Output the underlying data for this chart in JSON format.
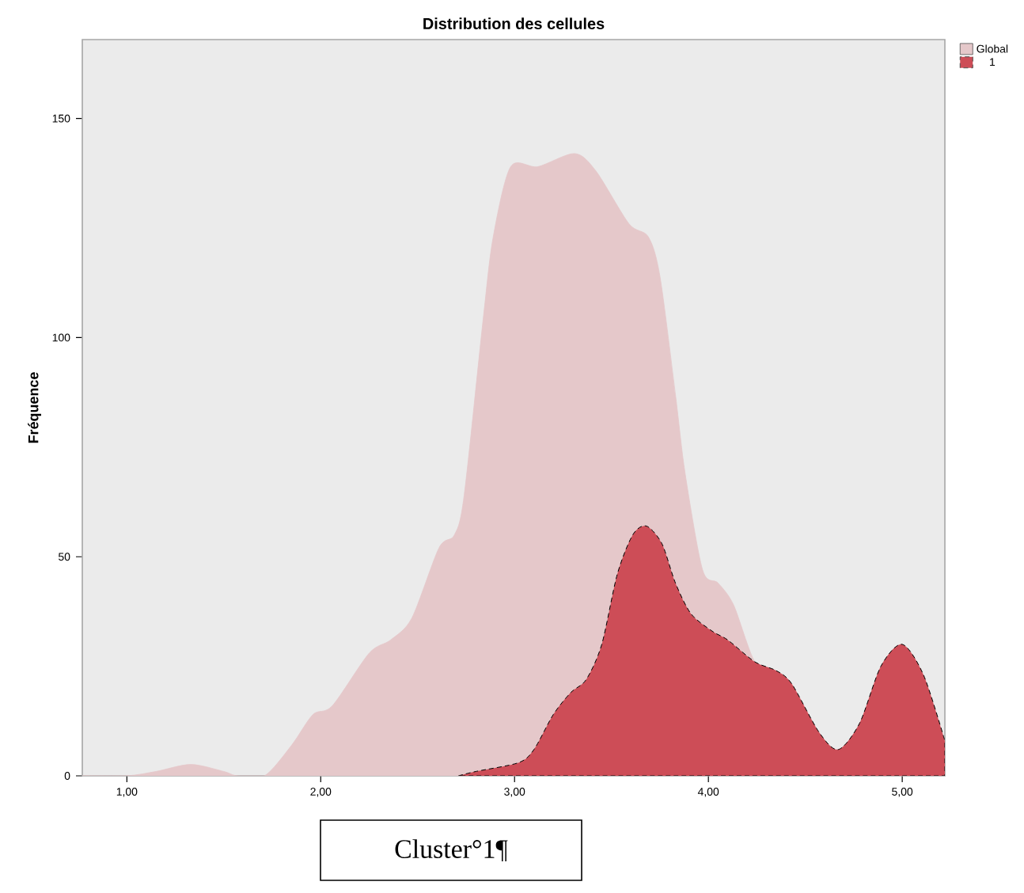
{
  "chart_data": {
    "type": "area",
    "title": "Distribution des cellules",
    "ylabel": "Fréquence",
    "xlim": [
      0.77,
      5.22
    ],
    "ylim": [
      0,
      168
    ],
    "xticks": [
      {
        "value": 1,
        "label": "1,00"
      },
      {
        "value": 2,
        "label": "2,00"
      },
      {
        "value": 3,
        "label": "3,00"
      },
      {
        "value": 4,
        "label": "4,00"
      },
      {
        "value": 5,
        "label": "5,00"
      }
    ],
    "yticks": [
      0,
      50,
      100,
      150
    ],
    "legend": "top right",
    "annotations": [
      "Cluster°1¶"
    ],
    "series": [
      {
        "name": "Global",
        "color": "#e5c8ca",
        "x": [
          0.77,
          1.0,
          1.15,
          1.33,
          1.5,
          1.57,
          1.71,
          1.85,
          1.96,
          2.06,
          2.25,
          2.36,
          2.47,
          2.61,
          2.69,
          2.74,
          2.84,
          2.89,
          2.98,
          3.12,
          3.31,
          3.42,
          3.59,
          3.69,
          3.75,
          3.83,
          3.88,
          3.97,
          4.05,
          4.13,
          4.24,
          4.35,
          4.43,
          4.57,
          4.67,
          4.78,
          4.89,
          5.0,
          5.11,
          5.22
        ],
        "values": [
          0,
          0,
          1,
          2.6,
          1,
          0,
          0,
          7,
          14,
          16,
          28,
          31,
          36,
          52,
          55,
          64,
          105,
          123,
          139,
          139,
          142,
          138,
          126,
          123,
          114,
          87,
          69,
          47,
          44,
          39,
          26,
          24,
          21,
          10,
          6,
          12,
          25,
          30,
          23,
          8
        ]
      },
      {
        "name": "1",
        "color": "#cd4d57",
        "x": [
          2.71,
          2.8,
          3.02,
          3.1,
          3.2,
          3.29,
          3.37,
          3.45,
          3.53,
          3.61,
          3.68,
          3.76,
          3.83,
          3.91,
          4.02,
          4.1,
          4.24,
          4.35,
          4.43,
          4.57,
          4.67,
          4.78,
          4.89,
          5.0,
          5.11,
          5.22
        ],
        "values": [
          0,
          1,
          3,
          6,
          14,
          19,
          22,
          30,
          46,
          55,
          57,
          53,
          44,
          37,
          33,
          31,
          26,
          24,
          21,
          10,
          6,
          12,
          25,
          30,
          23,
          8
        ]
      }
    ]
  }
}
